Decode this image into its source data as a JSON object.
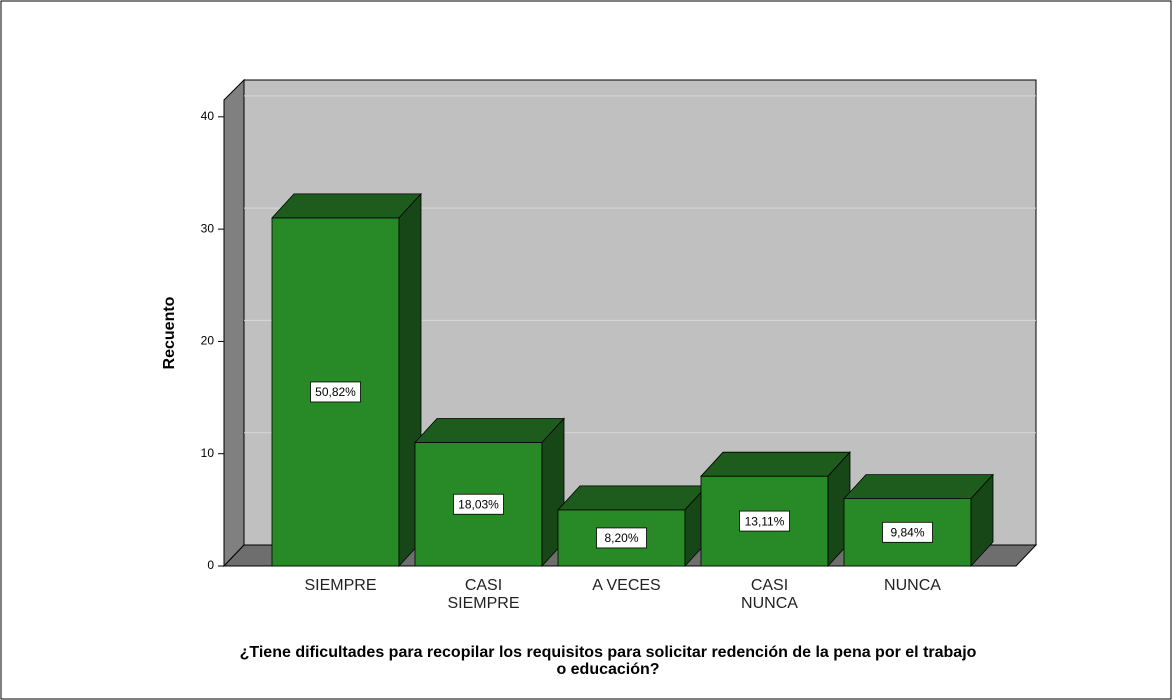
{
  "chart_data": {
    "type": "bar3d",
    "xlabel": "¿Tiene dificultades para recopilar los requisitos para solicitar redención de la pena por el trabajo o educación?",
    "ylabel": "Recuento",
    "categories": [
      "SIEMPRE",
      "CASI SIEMPRE",
      "A VECES",
      "CASI NUNCA",
      "NUNCA"
    ],
    "values": [
      31,
      11,
      5,
      8,
      6
    ],
    "value_labels": [
      "50,82%",
      "18,03%",
      "8,20%",
      "13,11%",
      "9,84%"
    ],
    "color": "#278a27",
    "ylim": [
      0,
      41.5
    ],
    "yticks": [
      0,
      10,
      20,
      30,
      40
    ],
    "grid": true
  }
}
